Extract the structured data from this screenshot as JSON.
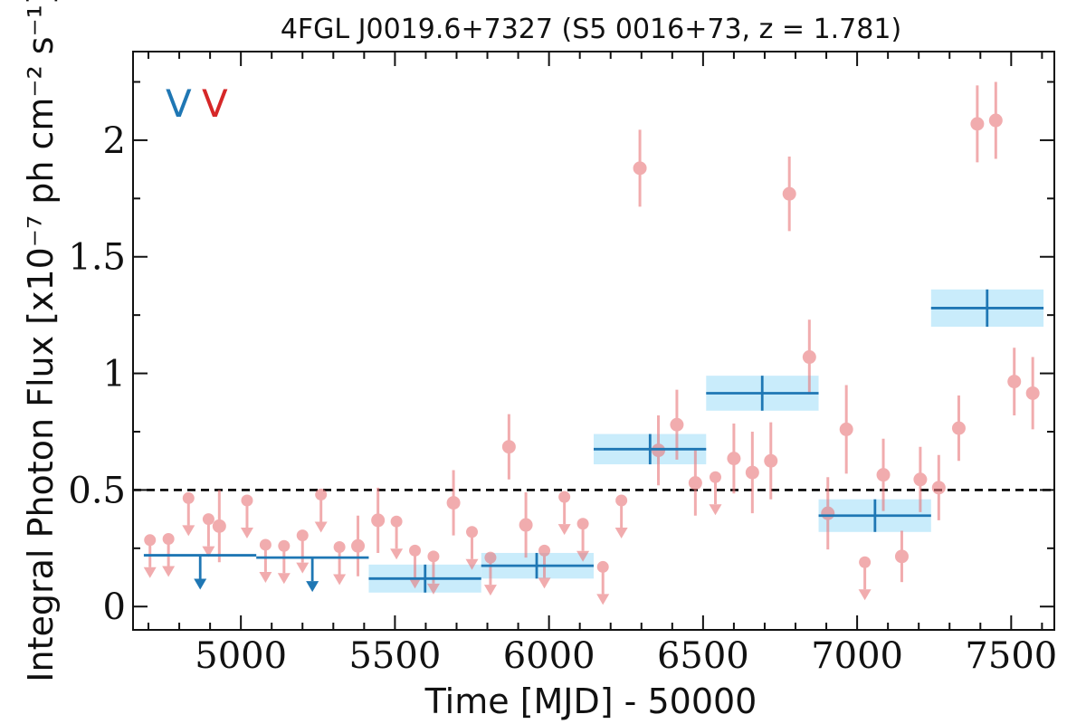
{
  "chart_data": {
    "type": "scatter",
    "title": "4FGL J0019.6+7327 (S5 0016+73, z = 1.781)",
    "xlabel": "Time [MJD] - 50000",
    "ylabel": "Integral Photon Flux [x10⁻⁷ ph cm⁻² s⁻¹]",
    "xlim": [
      4650,
      7640
    ],
    "ylim": [
      -0.1,
      2.38
    ],
    "xticks": [
      5000,
      5500,
      6000,
      6500,
      7000,
      7500
    ],
    "yticks": [
      0,
      0.5,
      1,
      1.5,
      2
    ],
    "xtick_labels": [
      "5000",
      "5500",
      "6000",
      "6500",
      "7000",
      "7500"
    ],
    "ytick_labels": [
      "0",
      "0.5",
      "1",
      "1.5",
      "2"
    ],
    "legend_labels": [
      {
        "text": "V",
        "color": "#1f77b4"
      },
      {
        "text": "V",
        "color": "#d62728"
      }
    ],
    "reference_line": {
      "y": 0.5,
      "style": "dashed",
      "color": "#000000"
    },
    "colors": {
      "short_bin": "#e8767a",
      "long_bin": "#1f77b4",
      "long_band": "#c9ecfb"
    },
    "short_bin_detections": [
      {
        "x": 4930,
        "y": 0.345,
        "err": 0.155
      },
      {
        "x": 5380,
        "y": 0.26,
        "err": 0.13
      },
      {
        "x": 5445,
        "y": 0.37,
        "err": 0.14
      },
      {
        "x": 5690,
        "y": 0.445,
        "err": 0.14
      },
      {
        "x": 5870,
        "y": 0.685,
        "err": 0.14
      },
      {
        "x": 5925,
        "y": 0.35,
        "err": 0.14
      },
      {
        "x": 6295,
        "y": 1.88,
        "err": 0.165
      },
      {
        "x": 6355,
        "y": 0.67,
        "err": 0.15
      },
      {
        "x": 6415,
        "y": 0.78,
        "err": 0.15
      },
      {
        "x": 6475,
        "y": 0.53,
        "err": 0.14
      },
      {
        "x": 6600,
        "y": 0.635,
        "err": 0.15
      },
      {
        "x": 6660,
        "y": 0.575,
        "err": 0.175
      },
      {
        "x": 6720,
        "y": 0.625,
        "err": 0.165
      },
      {
        "x": 6780,
        "y": 1.77,
        "err": 0.16
      },
      {
        "x": 6845,
        "y": 1.07,
        "err": 0.16
      },
      {
        "x": 6905,
        "y": 0.4,
        "err": 0.155
      },
      {
        "x": 6965,
        "y": 0.76,
        "err": 0.19
      },
      {
        "x": 7085,
        "y": 0.565,
        "err": 0.155
      },
      {
        "x": 7145,
        "y": 0.215,
        "err": 0.11
      },
      {
        "x": 7205,
        "y": 0.545,
        "err": 0.14
      },
      {
        "x": 7265,
        "y": 0.51,
        "err": 0.14
      },
      {
        "x": 7330,
        "y": 0.765,
        "err": 0.14
      },
      {
        "x": 7390,
        "y": 2.07,
        "err": 0.165
      },
      {
        "x": 7450,
        "y": 2.085,
        "err": 0.165
      },
      {
        "x": 7510,
        "y": 0.965,
        "err": 0.145
      },
      {
        "x": 7570,
        "y": 0.915,
        "err": 0.155
      }
    ],
    "short_bin_upper_limits": [
      {
        "x": 4705,
        "y": 0.285
      },
      {
        "x": 4765,
        "y": 0.29
      },
      {
        "x": 4830,
        "y": 0.465
      },
      {
        "x": 4895,
        "y": 0.375
      },
      {
        "x": 5020,
        "y": 0.455
      },
      {
        "x": 5080,
        "y": 0.265
      },
      {
        "x": 5140,
        "y": 0.26
      },
      {
        "x": 5200,
        "y": 0.305
      },
      {
        "x": 5260,
        "y": 0.48
      },
      {
        "x": 5320,
        "y": 0.255
      },
      {
        "x": 5505,
        "y": 0.365
      },
      {
        "x": 5565,
        "y": 0.24
      },
      {
        "x": 5625,
        "y": 0.215
      },
      {
        "x": 5750,
        "y": 0.32
      },
      {
        "x": 5810,
        "y": 0.21
      },
      {
        "x": 5985,
        "y": 0.24
      },
      {
        "x": 6050,
        "y": 0.47
      },
      {
        "x": 6110,
        "y": 0.355
      },
      {
        "x": 6175,
        "y": 0.17
      },
      {
        "x": 6235,
        "y": 0.455
      },
      {
        "x": 6540,
        "y": 0.555
      },
      {
        "x": 7025,
        "y": 0.19
      }
    ],
    "long_bin_detections": [
      {
        "x_start": 5415,
        "x_end": 5780,
        "y": 0.12,
        "y_low": 0.06,
        "y_high": 0.18,
        "x_center": 5598
      },
      {
        "x_start": 5780,
        "x_end": 6145,
        "y": 0.175,
        "y_low": 0.12,
        "y_high": 0.23,
        "x_center": 5960
      },
      {
        "x_start": 6145,
        "x_end": 6510,
        "y": 0.675,
        "y_low": 0.61,
        "y_high": 0.74,
        "x_center": 6328
      },
      {
        "x_start": 6510,
        "x_end": 6875,
        "y": 0.915,
        "y_low": 0.84,
        "y_high": 0.99,
        "x_center": 6692
      },
      {
        "x_start": 6875,
        "x_end": 7240,
        "y": 0.39,
        "y_low": 0.32,
        "y_high": 0.46,
        "x_center": 7058
      },
      {
        "x_start": 7240,
        "x_end": 7605,
        "y": 1.28,
        "y_low": 1.2,
        "y_high": 1.36,
        "x_center": 7422
      }
    ],
    "long_bin_upper_limits": [
      {
        "x_start": 4685,
        "x_end": 5050,
        "y": 0.22,
        "x_center": 4868
      },
      {
        "x_start": 5050,
        "x_end": 5415,
        "y": 0.21,
        "x_center": 5232
      }
    ]
  }
}
